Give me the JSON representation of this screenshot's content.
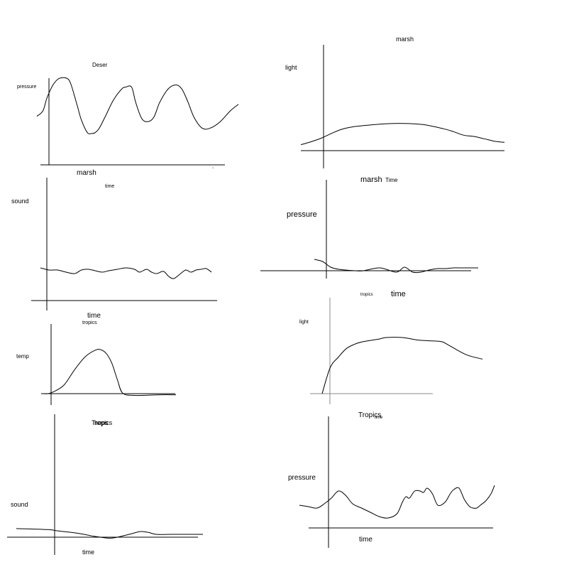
{
  "chart_data": [
    {
      "id": "c1",
      "type": "line",
      "title": "Deser",
      "ylabel": "pressure",
      "xlabel": "marsh",
      "extra_text": [
        "`"
      ],
      "x": [
        0,
        3,
        5,
        8,
        11,
        15,
        17,
        20,
        22,
        25,
        27,
        29,
        31,
        34,
        38,
        42,
        44,
        47,
        49,
        52,
        55,
        58,
        61,
        65,
        69,
        72,
        75,
        78,
        82,
        86,
        91,
        96,
        100
      ],
      "y": [
        45,
        50,
        62,
        74,
        80,
        80,
        74,
        55,
        42,
        30,
        29,
        30,
        34,
        45,
        60,
        70,
        72,
        72,
        58,
        43,
        40,
        44,
        58,
        70,
        74,
        70,
        58,
        44,
        34,
        34,
        40,
        50,
        56
      ]
    },
    {
      "id": "c2",
      "type": "line",
      "title": "marsh",
      "ylabel": "light",
      "xlabel": "Time",
      "x": [
        0,
        5,
        10,
        15,
        20,
        25,
        30,
        40,
        50,
        60,
        70,
        75,
        80,
        85,
        90,
        95,
        100
      ],
      "y": [
        10,
        15,
        21,
        29,
        36,
        40,
        42,
        45,
        46,
        44,
        37,
        32,
        26,
        24,
        20,
        16,
        14
      ]
    },
    {
      "id": "c3",
      "type": "line",
      "title": "time",
      "ylabel": "sound",
      "xlabel": "time",
      "x": [
        0,
        5,
        10,
        15,
        20,
        24,
        28,
        32,
        36,
        40,
        45,
        50,
        55,
        58,
        62,
        65,
        68,
        72,
        75,
        78,
        82,
        85,
        88,
        91,
        94,
        97,
        100
      ],
      "y": [
        46,
        43,
        43,
        40,
        38,
        43,
        44,
        42,
        40,
        42,
        44,
        46,
        44,
        40,
        44,
        40,
        38,
        41,
        34,
        31,
        38,
        43,
        40,
        43,
        44,
        45,
        40
      ]
    },
    {
      "id": "c4",
      "type": "line",
      "title": "time",
      "ylabel": "pressure",
      "xlabel": "marsh",
      "x": [
        0,
        5,
        10,
        15,
        25,
        30,
        40,
        50,
        55,
        60,
        65,
        70,
        75,
        80,
        85,
        90,
        100
      ],
      "y": [
        16,
        13,
        5,
        2,
        0,
        0,
        4,
        -2,
        5,
        -2,
        -2,
        1,
        3,
        3,
        4,
        4,
        4
      ]
    },
    {
      "id": "c5",
      "type": "line",
      "title": "tropics",
      "ylabel": "temp",
      "xlabel": "time",
      "x": [
        0,
        5,
        10,
        20,
        30,
        40,
        50,
        55,
        60,
        65,
        70,
        75,
        85,
        95,
        110,
        125
      ],
      "y": [
        0,
        0,
        3,
        15,
        42,
        65,
        77,
        77,
        70,
        53,
        25,
        1,
        -3,
        -3,
        -2,
        -2
      ]
    },
    {
      "id": "c6",
      "type": "line",
      "title": "tropics",
      "ylabel": "light",
      "xlabel": "Tropics",
      "x": [
        0,
        5,
        10,
        15,
        20,
        25,
        35,
        40,
        50,
        60,
        70,
        75,
        80,
        90,
        100
      ],
      "y": [
        0,
        30,
        42,
        52,
        57,
        60,
        63,
        65,
        65,
        62,
        61,
        60,
        55,
        45,
        40
      ]
    },
    {
      "id": "c7",
      "type": "line",
      "title": "Tropics",
      "ylabel": "sound",
      "xlabel": "time",
      "extra_text": [
        "heps"
      ],
      "x": [
        -20,
        0,
        5,
        10,
        20,
        30,
        40,
        45,
        50,
        55,
        60,
        65,
        70,
        80,
        90,
        95,
        100
      ],
      "y": [
        6,
        5,
        4,
        3,
        1,
        -2,
        -4,
        -3,
        -1,
        1,
        3,
        2,
        0,
        0,
        0,
        0,
        0
      ]
    },
    {
      "id": "c8",
      "type": "line",
      "title": "Tropics",
      "ylabel": "pressure",
      "xlabel": "time",
      "extra_text": [
        "time"
      ],
      "x": [
        -10,
        -5,
        0,
        4,
        8,
        12,
        16,
        20,
        25,
        30,
        35,
        40,
        45,
        48,
        50,
        52,
        55,
        58,
        60,
        62,
        65,
        68,
        72,
        75,
        77,
        80,
        83,
        86,
        88,
        90,
        92,
        95,
        98,
        100
      ],
      "y": [
        16,
        15,
        14,
        17,
        21,
        26,
        23,
        17,
        14,
        11,
        8,
        7,
        10,
        18,
        22,
        21,
        26,
        26,
        25,
        28,
        24,
        16,
        18,
        24,
        27,
        28,
        20,
        15,
        14,
        14,
        16,
        19,
        24,
        30
      ]
    }
  ]
}
